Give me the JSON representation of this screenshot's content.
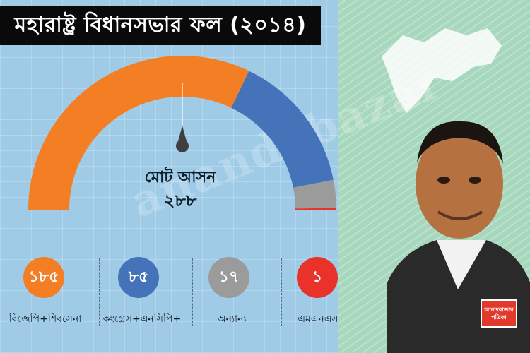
{
  "title": "মহারাষ্ট্র বিধানসভার ফল (২০১৪)",
  "watermark": "anandabazar",
  "total": {
    "label": "মোট আসন",
    "value": "২৮৮"
  },
  "logo": {
    "line1": "আনন্দবাজার",
    "line2": "পত্রিকা"
  },
  "colors": {
    "panel_bg": "#9fcbe7",
    "bjp": "#f47e24",
    "congress": "#4573b9",
    "others": "#9b9b9b",
    "mns": "#e8322a"
  },
  "chart_data": {
    "type": "pie",
    "subtype": "semicircle-gauge",
    "total": 288,
    "categories": [
      "বিজেপি+শিবসেনা",
      "কংগ্রেস+এনসিপি+",
      "অন্যান্য",
      "এমএনএস"
    ],
    "values": [
      185,
      85,
      17,
      1
    ],
    "value_labels": [
      "১৮৫",
      "৮৫",
      "১৭",
      "১"
    ],
    "colors": [
      "#f47e24",
      "#4573b9",
      "#9b9b9b",
      "#e8322a"
    ],
    "legend": "bottom"
  }
}
